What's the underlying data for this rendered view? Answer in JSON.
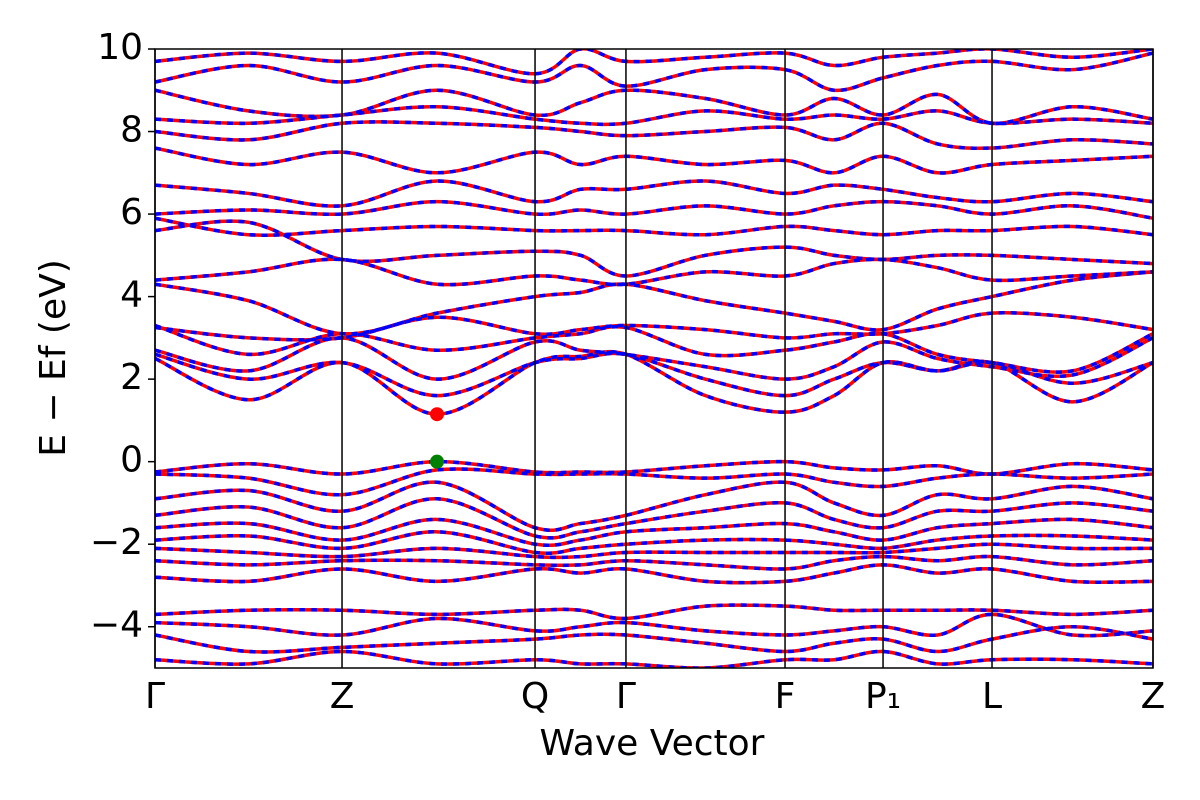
{
  "chart_data": {
    "type": "band-structure",
    "xlabel": "Wave Vector",
    "ylabel": "E − Ef (eV)",
    "xlim": [
      0,
      1
    ],
    "xticks": [
      {
        "value": 0,
        "label": "Γ"
      },
      {
        "value": 0.1874,
        "label": "Z"
      },
      {
        "value": 0.3808,
        "label": "Q"
      },
      {
        "value": 0.4719,
        "label": "Γ"
      },
      {
        "value": 0.6313,
        "label": "F"
      },
      {
        "value": 0.7295,
        "label": "P₁"
      },
      {
        "value": 0.8387,
        "label": "L"
      },
      {
        "value": 1,
        "label": "Z"
      }
    ],
    "ylim": [
      -5,
      10
    ],
    "yticks": [
      {
        "value": -4,
        "label": "−4"
      },
      {
        "value": -2,
        "label": "−2"
      },
      0,
      2,
      4,
      6,
      8,
      10
    ],
    "line_colors": [
      "#ff0000",
      "#0000ff"
    ],
    "x": [
      0,
      0.0937,
      0.1874,
      0.2826,
      0.3808,
      0.4264,
      0.4719,
      0.5516,
      0.6313,
      0.6804,
      0.7295,
      0.7841,
      0.8387,
      0.9194,
      1
    ],
    "bands": [
      [
        2.5,
        1.5,
        2.4,
        1.15,
        2.4,
        2.55,
        2.6,
        1.6,
        1.2,
        1.6,
        2.4,
        2.2,
        2.4,
        1.45,
        2.4
      ],
      [
        2.6,
        2.0,
        2.4,
        1.6,
        2.4,
        2.5,
        2.6,
        2.0,
        1.6,
        2.0,
        2.4,
        2.2,
        2.4,
        1.9,
        2.4
      ],
      [
        2.7,
        2.2,
        3.0,
        2.0,
        2.9,
        2.7,
        2.6,
        2.3,
        2.0,
        2.3,
        2.9,
        2.5,
        2.3,
        2.1,
        3.0
      ],
      [
        3.3,
        2.6,
        3.1,
        2.7,
        3.0,
        3.1,
        3.25,
        2.6,
        2.7,
        2.9,
        3.1,
        2.6,
        2.4,
        2.2,
        3.1
      ],
      [
        3.25,
        3.0,
        3.0,
        3.5,
        3.1,
        3.2,
        3.3,
        3.2,
        3.0,
        3.1,
        3.1,
        3.3,
        3.6,
        3.5,
        3.2
      ],
      [
        4.3,
        3.9,
        3.1,
        3.6,
        4.0,
        4.1,
        4.3,
        3.9,
        3.6,
        3.4,
        3.2,
        3.7,
        4.0,
        4.4,
        4.6
      ],
      [
        4.4,
        4.6,
        4.9,
        4.3,
        4.5,
        4.4,
        4.3,
        4.6,
        4.5,
        4.8,
        4.9,
        4.7,
        4.4,
        4.5,
        4.6
      ],
      [
        5.6,
        5.8,
        4.9,
        5.0,
        5.1,
        5.0,
        4.5,
        5.0,
        5.2,
        5.0,
        4.9,
        5.0,
        5.0,
        4.9,
        4.8
      ],
      [
        5.9,
        5.5,
        5.6,
        5.7,
        5.6,
        5.6,
        5.6,
        5.5,
        5.7,
        5.6,
        5.5,
        5.6,
        5.6,
        5.7,
        5.5
      ],
      [
        6.0,
        6.1,
        6.0,
        6.3,
        6.0,
        6.1,
        6.0,
        6.2,
        6.0,
        6.2,
        6.3,
        6.2,
        6.0,
        6.2,
        5.9
      ],
      [
        6.7,
        6.5,
        6.2,
        6.8,
        6.3,
        6.6,
        6.6,
        6.8,
        6.5,
        6.7,
        6.6,
        6.4,
        6.3,
        6.5,
        6.3
      ],
      [
        7.6,
        7.2,
        7.5,
        7.0,
        7.5,
        7.2,
        7.4,
        7.2,
        7.3,
        7.0,
        7.4,
        7.0,
        7.2,
        7.3,
        7.4
      ],
      [
        8.0,
        7.8,
        8.2,
        8.2,
        8.1,
        8.0,
        7.9,
        8.0,
        8.1,
        7.8,
        8.2,
        7.7,
        7.6,
        7.8,
        7.7
      ],
      [
        8.3,
        8.2,
        8.4,
        8.6,
        8.3,
        8.2,
        8.2,
        8.5,
        8.3,
        8.4,
        8.3,
        8.5,
        8.2,
        8.3,
        8.2
      ],
      [
        9.0,
        8.5,
        8.4,
        9.0,
        8.4,
        8.7,
        9.0,
        8.8,
        8.4,
        8.8,
        8.4,
        8.9,
        8.2,
        8.6,
        8.3
      ],
      [
        9.2,
        9.6,
        9.2,
        9.6,
        9.2,
        9.6,
        9.1,
        9.5,
        9.5,
        9.0,
        9.3,
        9.6,
        9.7,
        9.5,
        9.9
      ],
      [
        9.7,
        9.9,
        9.7,
        9.9,
        9.4,
        10,
        9.7,
        9.8,
        9.9,
        9.6,
        9.8,
        9.9,
        10,
        9.8,
        10
      ],
      [
        -0.25,
        -0.05,
        -0.3,
        0,
        -0.25,
        -0.25,
        -0.25,
        -0.1,
        0,
        -0.15,
        -0.2,
        -0.1,
        -0.3,
        -0.05,
        -0.2
      ],
      [
        -0.3,
        -0.4,
        -0.8,
        -0.2,
        -0.3,
        -0.3,
        -0.3,
        -0.4,
        -0.3,
        -0.5,
        -0.6,
        -0.4,
        -0.3,
        -0.4,
        -0.3
      ],
      [
        -0.9,
        -0.7,
        -1.2,
        -0.5,
        -1.6,
        -1.5,
        -1.3,
        -0.8,
        -0.5,
        -1.0,
        -1.3,
        -0.8,
        -0.9,
        -0.6,
        -0.9
      ],
      [
        -1.3,
        -1.1,
        -1.6,
        -0.9,
        -1.8,
        -1.7,
        -1.5,
        -1.2,
        -1.0,
        -1.4,
        -1.6,
        -1.2,
        -1.2,
        -1.0,
        -1.2
      ],
      [
        -1.6,
        -1.5,
        -1.9,
        -1.4,
        -2.0,
        -1.9,
        -1.7,
        -1.6,
        -1.5,
        -1.7,
        -1.9,
        -1.6,
        -1.5,
        -1.4,
        -1.6
      ],
      [
        -1.9,
        -1.8,
        -2.1,
        -1.7,
        -2.2,
        -2.1,
        -2.0,
        -1.9,
        -1.9,
        -2.0,
        -2.1,
        -1.9,
        -1.8,
        -1.8,
        -1.9
      ],
      [
        -2.1,
        -2.2,
        -2.3,
        -2.1,
        -2.3,
        -2.3,
        -2.2,
        -2.2,
        -2.2,
        -2.2,
        -2.2,
        -2.1,
        -2.0,
        -2.1,
        -2.1
      ],
      [
        -2.4,
        -2.5,
        -2.4,
        -2.4,
        -2.5,
        -2.5,
        -2.4,
        -2.5,
        -2.6,
        -2.4,
        -2.3,
        -2.4,
        -2.3,
        -2.5,
        -2.4
      ],
      [
        -2.8,
        -2.9,
        -2.6,
        -2.9,
        -2.6,
        -2.7,
        -2.6,
        -2.9,
        -2.9,
        -2.7,
        -2.5,
        -2.7,
        -2.6,
        -2.9,
        -2.9
      ],
      [
        -3.7,
        -3.6,
        -3.6,
        -3.7,
        -3.6,
        -3.6,
        -3.8,
        -3.5,
        -3.5,
        -3.6,
        -3.6,
        -3.6,
        -3.6,
        -3.7,
        -3.6
      ],
      [
        -3.9,
        -4.0,
        -4.2,
        -3.8,
        -4.1,
        -4.0,
        -3.9,
        -4.1,
        -4.2,
        -4.1,
        -4.0,
        -4.2,
        -3.7,
        -4.2,
        -4.1
      ],
      [
        -4.2,
        -4.6,
        -4.5,
        -4.4,
        -4.3,
        -4.2,
        -4.2,
        -4.4,
        -4.6,
        -4.4,
        -4.3,
        -4.6,
        -4.3,
        -4.0,
        -4.3
      ],
      [
        -4.8,
        -4.9,
        -4.6,
        -4.9,
        -4.8,
        -4.9,
        -4.9,
        -5.0,
        -4.8,
        -4.8,
        -4.6,
        -4.9,
        -4.8,
        -4.8,
        -4.9
      ]
    ],
    "markers": [
      {
        "x": 0.2826,
        "y": 1.15,
        "color": "#ff0000"
      },
      {
        "x": 0.2826,
        "y": 0,
        "color": "#008000"
      }
    ]
  }
}
